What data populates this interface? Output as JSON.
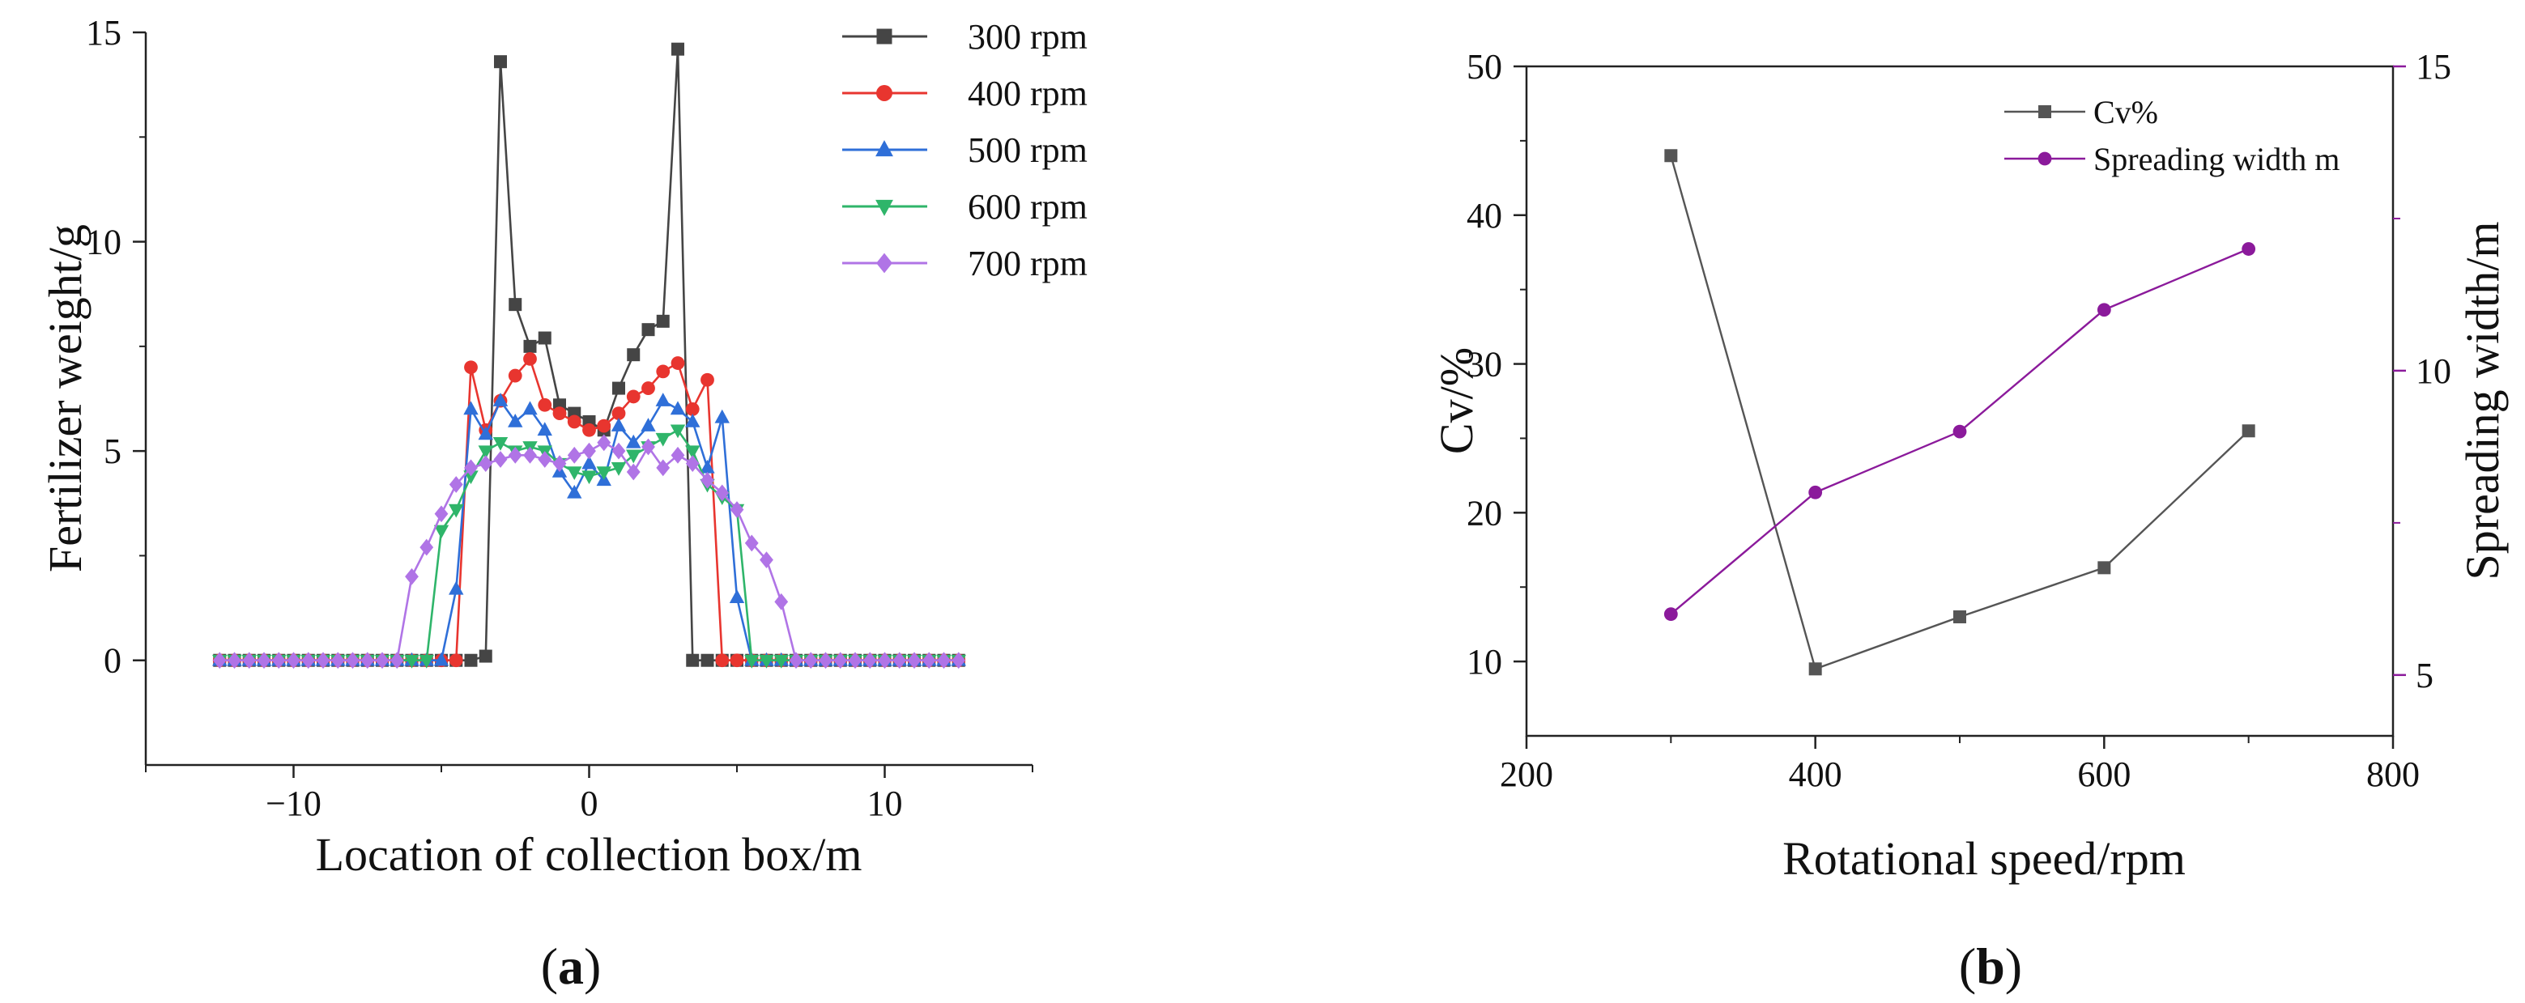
{
  "chart_data": [
    {
      "type": "line",
      "panel_label": "(a)",
      "panel_label_parts": {
        "open": "(",
        "letter": "a",
        "close": ")"
      },
      "xlabel": "Location of collection box/m",
      "ylabel": "Fertilizer weight/g",
      "xlim": [
        -15,
        15
      ],
      "ylim": [
        -2.5,
        15
      ],
      "xticks": [
        -10,
        0,
        10
      ],
      "xtick_labels": [
        "−10",
        "0",
        "10"
      ],
      "yticks": [
        0,
        5,
        10,
        15
      ],
      "ytick_labels": [
        "0",
        "5",
        "10",
        "15"
      ],
      "legend_position": "top-right",
      "series": [
        {
          "name": "300 rpm",
          "color": "#454545",
          "marker": "square",
          "x": [
            -12.5,
            -12,
            -11.5,
            -11,
            -10.5,
            -10,
            -9.5,
            -9,
            -8.5,
            -8,
            -7.5,
            -7,
            -6.5,
            -6,
            -5.5,
            -5,
            -4.5,
            -4,
            -3.5,
            -3,
            -2.5,
            -2,
            -1.5,
            -1,
            -0.5,
            0,
            0.5,
            1,
            1.5,
            2,
            2.5,
            3,
            3.5,
            4,
            4.5,
            5,
            5.5,
            6,
            6.5,
            7,
            7.5,
            8,
            8.5,
            9,
            9.5,
            10,
            10.5,
            11,
            11.5,
            12,
            12.5
          ],
          "y": [
            0,
            0,
            0,
            0,
            0,
            0,
            0,
            0,
            0,
            0,
            0,
            0,
            0,
            0,
            0,
            0,
            0,
            0,
            0.1,
            14.3,
            8.5,
            7.5,
            7.7,
            6.1,
            5.9,
            5.7,
            5.5,
            6.5,
            7.3,
            7.9,
            8.1,
            14.6,
            0,
            0,
            0,
            0,
            0,
            0,
            0,
            0,
            0,
            0,
            0,
            0,
            0,
            0,
            0,
            0,
            0,
            0,
            0
          ]
        },
        {
          "name": "400 rpm",
          "color": "#e8352f",
          "marker": "circle",
          "x": [
            -12.5,
            -12,
            -11.5,
            -11,
            -10.5,
            -10,
            -9.5,
            -9,
            -8.5,
            -8,
            -7.5,
            -7,
            -6.5,
            -6,
            -5.5,
            -5,
            -4.5,
            -4,
            -3.5,
            -3,
            -2.5,
            -2,
            -1.5,
            -1,
            -0.5,
            0,
            0.5,
            1,
            1.5,
            2,
            2.5,
            3,
            3.5,
            4,
            4.5,
            5,
            5.5,
            6,
            6.5,
            7,
            7.5,
            8,
            8.5,
            9,
            9.5,
            10,
            10.5,
            11,
            11.5,
            12,
            12.5
          ],
          "y": [
            0,
            0,
            0,
            0,
            0,
            0,
            0,
            0,
            0,
            0,
            0,
            0,
            0,
            0,
            0,
            0,
            0,
            7.0,
            5.5,
            6.2,
            6.8,
            7.2,
            6.1,
            5.9,
            5.7,
            5.5,
            5.6,
            5.9,
            6.3,
            6.5,
            6.9,
            7.1,
            6.0,
            6.7,
            0,
            0,
            0,
            0,
            0,
            0,
            0,
            0,
            0,
            0,
            0,
            0,
            0,
            0,
            0,
            0,
            0
          ]
        },
        {
          "name": "500 rpm",
          "color": "#2f6fd8",
          "marker": "triangle-up",
          "x": [
            -12.5,
            -12,
            -11.5,
            -11,
            -10.5,
            -10,
            -9.5,
            -9,
            -8.5,
            -8,
            -7.5,
            -7,
            -6.5,
            -6,
            -5.5,
            -5,
            -4.5,
            -4,
            -3.5,
            -3,
            -2.5,
            -2,
            -1.5,
            -1,
            -0.5,
            0,
            0.5,
            1,
            1.5,
            2,
            2.5,
            3,
            3.5,
            4,
            4.5,
            5,
            5.5,
            6,
            6.5,
            7,
            7.5,
            8,
            8.5,
            9,
            9.5,
            10,
            10.5,
            11,
            11.5,
            12,
            12.5
          ],
          "y": [
            0,
            0,
            0,
            0,
            0,
            0,
            0,
            0,
            0,
            0,
            0,
            0,
            0,
            0,
            0,
            0,
            1.7,
            6.0,
            5.4,
            6.2,
            5.7,
            6.0,
            5.5,
            4.5,
            4.0,
            4.7,
            4.3,
            5.6,
            5.2,
            5.6,
            6.2,
            6.0,
            5.7,
            4.6,
            5.8,
            1.5,
            0,
            0,
            0,
            0,
            0,
            0,
            0,
            0,
            0,
            0,
            0,
            0,
            0,
            0,
            0
          ]
        },
        {
          "name": "600 rpm",
          "color": "#2fb56a",
          "marker": "triangle-down",
          "x": [
            -12.5,
            -12,
            -11.5,
            -11,
            -10.5,
            -10,
            -9.5,
            -9,
            -8.5,
            -8,
            -7.5,
            -7,
            -6.5,
            -6,
            -5.5,
            -5,
            -4.5,
            -4,
            -3.5,
            -3,
            -2.5,
            -2,
            -1.5,
            -1,
            -0.5,
            0,
            0.5,
            1,
            1.5,
            2,
            2.5,
            3,
            3.5,
            4,
            4.5,
            5,
            5.5,
            6,
            6.5,
            7,
            7.5,
            8,
            8.5,
            9,
            9.5,
            10,
            10.5,
            11,
            11.5,
            12,
            12.5
          ],
          "y": [
            0,
            0,
            0,
            0,
            0,
            0,
            0,
            0,
            0,
            0,
            0,
            0,
            0,
            0,
            0,
            3.1,
            3.6,
            4.4,
            5.0,
            5.2,
            5.0,
            5.1,
            5.0,
            4.7,
            4.5,
            4.4,
            4.5,
            4.6,
            4.9,
            5.1,
            5.3,
            5.5,
            5.0,
            4.2,
            3.9,
            3.6,
            0,
            0,
            0,
            0,
            0,
            0,
            0,
            0,
            0,
            0,
            0,
            0,
            0,
            0,
            0
          ]
        },
        {
          "name": "700 rpm",
          "color": "#b074e6",
          "marker": "diamond",
          "x": [
            -12.5,
            -12,
            -11.5,
            -11,
            -10.5,
            -10,
            -9.5,
            -9,
            -8.5,
            -8,
            -7.5,
            -7,
            -6.5,
            -6,
            -5.5,
            -5,
            -4.5,
            -4,
            -3.5,
            -3,
            -2.5,
            -2,
            -1.5,
            -1,
            -0.5,
            0,
            0.5,
            1,
            1.5,
            2,
            2.5,
            3,
            3.5,
            4,
            4.5,
            5,
            5.5,
            6,
            6.5,
            7,
            7.5,
            8,
            8.5,
            9,
            9.5,
            10,
            10.5,
            11,
            11.5,
            12,
            12.5
          ],
          "y": [
            0,
            0,
            0,
            0,
            0,
            0,
            0,
            0,
            0,
            0,
            0,
            0,
            0,
            2.0,
            2.7,
            3.5,
            4.2,
            4.6,
            4.7,
            4.8,
            4.9,
            4.9,
            4.8,
            4.7,
            4.9,
            5.0,
            5.2,
            5.0,
            4.5,
            5.1,
            4.6,
            4.9,
            4.7,
            4.3,
            4.0,
            3.6,
            2.8,
            2.4,
            1.4,
            0,
            0,
            0,
            0,
            0,
            0,
            0,
            0,
            0,
            0,
            0,
            0
          ]
        }
      ]
    },
    {
      "type": "line",
      "panel_label": "(b)",
      "panel_label_parts": {
        "open": "(",
        "letter": "b",
        "close": ")"
      },
      "xlabel": "Rotational speed/rpm",
      "ylabel": "Cv/%",
      "y2label": "Spreading width/m",
      "xlim": [
        200,
        800
      ],
      "ylim": [
        5,
        50
      ],
      "y2lim": [
        4,
        15
      ],
      "xticks": [
        200,
        400,
        600,
        800
      ],
      "yticks": [
        10,
        20,
        30,
        40,
        50
      ],
      "y2ticks": [
        5,
        10,
        15
      ],
      "legend_position": "top-right",
      "series": [
        {
          "name": "Cv%",
          "axis": "left",
          "color": "#555555",
          "marker": "square",
          "x": [
            300,
            400,
            500,
            600,
            700
          ],
          "y": [
            44.0,
            9.5,
            13.0,
            16.3,
            25.5
          ]
        },
        {
          "name": "Spreading width m",
          "axis": "right",
          "color": "#8b1a9b",
          "marker": "circle",
          "x": [
            300,
            400,
            500,
            600,
            700
          ],
          "y": [
            6.0,
            8.0,
            9.0,
            11.0,
            12.0
          ]
        }
      ]
    }
  ]
}
